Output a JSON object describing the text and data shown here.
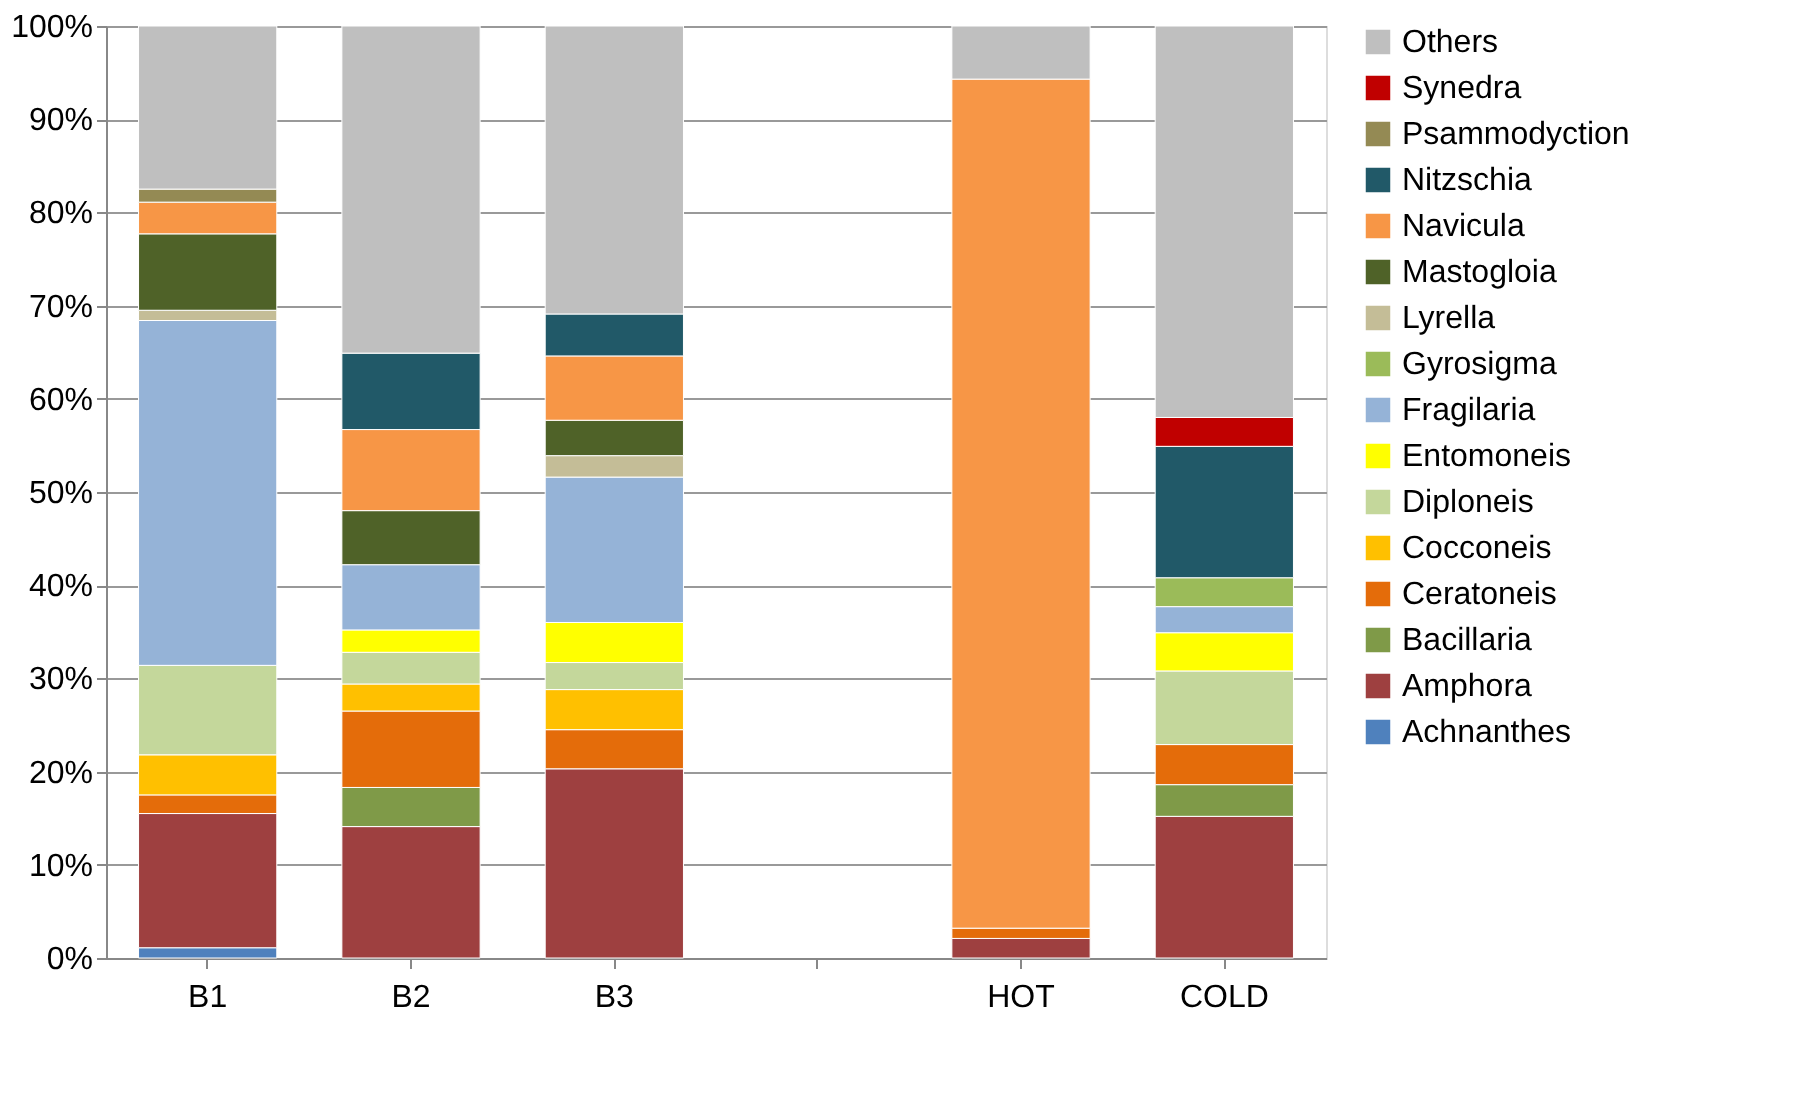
{
  "chart_data": {
    "type": "bar",
    "stacked": true,
    "categories": [
      "B1",
      "B2",
      "B3",
      null,
      "HOT",
      "COLD"
    ],
    "series": [
      {
        "name": "Achnanthes",
        "color": "#4f81bd",
        "values": [
          1.1,
          null,
          null,
          null,
          null,
          null
        ]
      },
      {
        "name": "Amphora",
        "color": "#9e4040",
        "values": [
          14.4,
          14.1,
          20.3,
          null,
          2.1,
          15.2
        ]
      },
      {
        "name": "Bacillaria",
        "color": "#7f9a48",
        "values": [
          null,
          4.2,
          null,
          null,
          null,
          3.4
        ]
      },
      {
        "name": "Ceratoneis",
        "color": "#e46c0a",
        "values": [
          2.0,
          8.2,
          4.2,
          null,
          1.1,
          4.3
        ]
      },
      {
        "name": "Cocconeis",
        "color": "#ffc000",
        "values": [
          4.3,
          2.9,
          4.3,
          null,
          null,
          null
        ]
      },
      {
        "name": "Diploneis",
        "color": "#c4d79b",
        "values": [
          9.6,
          3.4,
          2.9,
          null,
          null,
          7.9
        ]
      },
      {
        "name": "Entomoneis",
        "color": "#ffff00",
        "values": [
          null,
          2.4,
          4.3,
          null,
          null,
          4.1
        ]
      },
      {
        "name": "Fragilaria",
        "color": "#95b3d7",
        "values": [
          37.0,
          7.0,
          15.6,
          null,
          null,
          2.8
        ]
      },
      {
        "name": "Gyrosigma",
        "color": "#9bbb59",
        "values": [
          null,
          null,
          null,
          null,
          null,
          3.1
        ]
      },
      {
        "name": "Lyrella",
        "color": "#c4bd97",
        "values": [
          1.1,
          null,
          2.3,
          null,
          null,
          null
        ]
      },
      {
        "name": "Mastogloia",
        "color": "#4f6228",
        "values": [
          8.2,
          5.8,
          3.8,
          null,
          null,
          null
        ]
      },
      {
        "name": "Navicula",
        "color": "#f79646",
        "values": [
          3.4,
          8.7,
          6.9,
          null,
          91.1,
          null
        ]
      },
      {
        "name": "Nitzschia",
        "color": "#215968",
        "values": [
          null,
          8.2,
          4.5,
          null,
          null,
          14.1
        ]
      },
      {
        "name": "Psammodyction",
        "color": "#948a54",
        "values": [
          1.4,
          null,
          null,
          null,
          null,
          null
        ]
      },
      {
        "name": "Synedra",
        "color": "#c00000",
        "values": [
          null,
          null,
          null,
          null,
          null,
          3.1
        ]
      },
      {
        "name": "Others",
        "color": "#bfbfbf",
        "values": [
          17.5,
          35.1,
          30.9,
          null,
          5.7,
          42.0
        ]
      }
    ],
    "ylim": [
      0,
      100
    ],
    "yticks": [
      {
        "value": 0,
        "label": "0%"
      },
      {
        "value": 10,
        "label": "10%"
      },
      {
        "value": 20,
        "label": "20%"
      },
      {
        "value": 30,
        "label": "30%"
      },
      {
        "value": 40,
        "label": "40%"
      },
      {
        "value": 50,
        "label": "50%"
      },
      {
        "value": 60,
        "label": "60%"
      },
      {
        "value": 70,
        "label": "70%"
      },
      {
        "value": 80,
        "label": "80%"
      },
      {
        "value": 90,
        "label": "90%"
      },
      {
        "value": 100,
        "label": "100%"
      }
    ],
    "grid": "y",
    "legend": "right"
  }
}
